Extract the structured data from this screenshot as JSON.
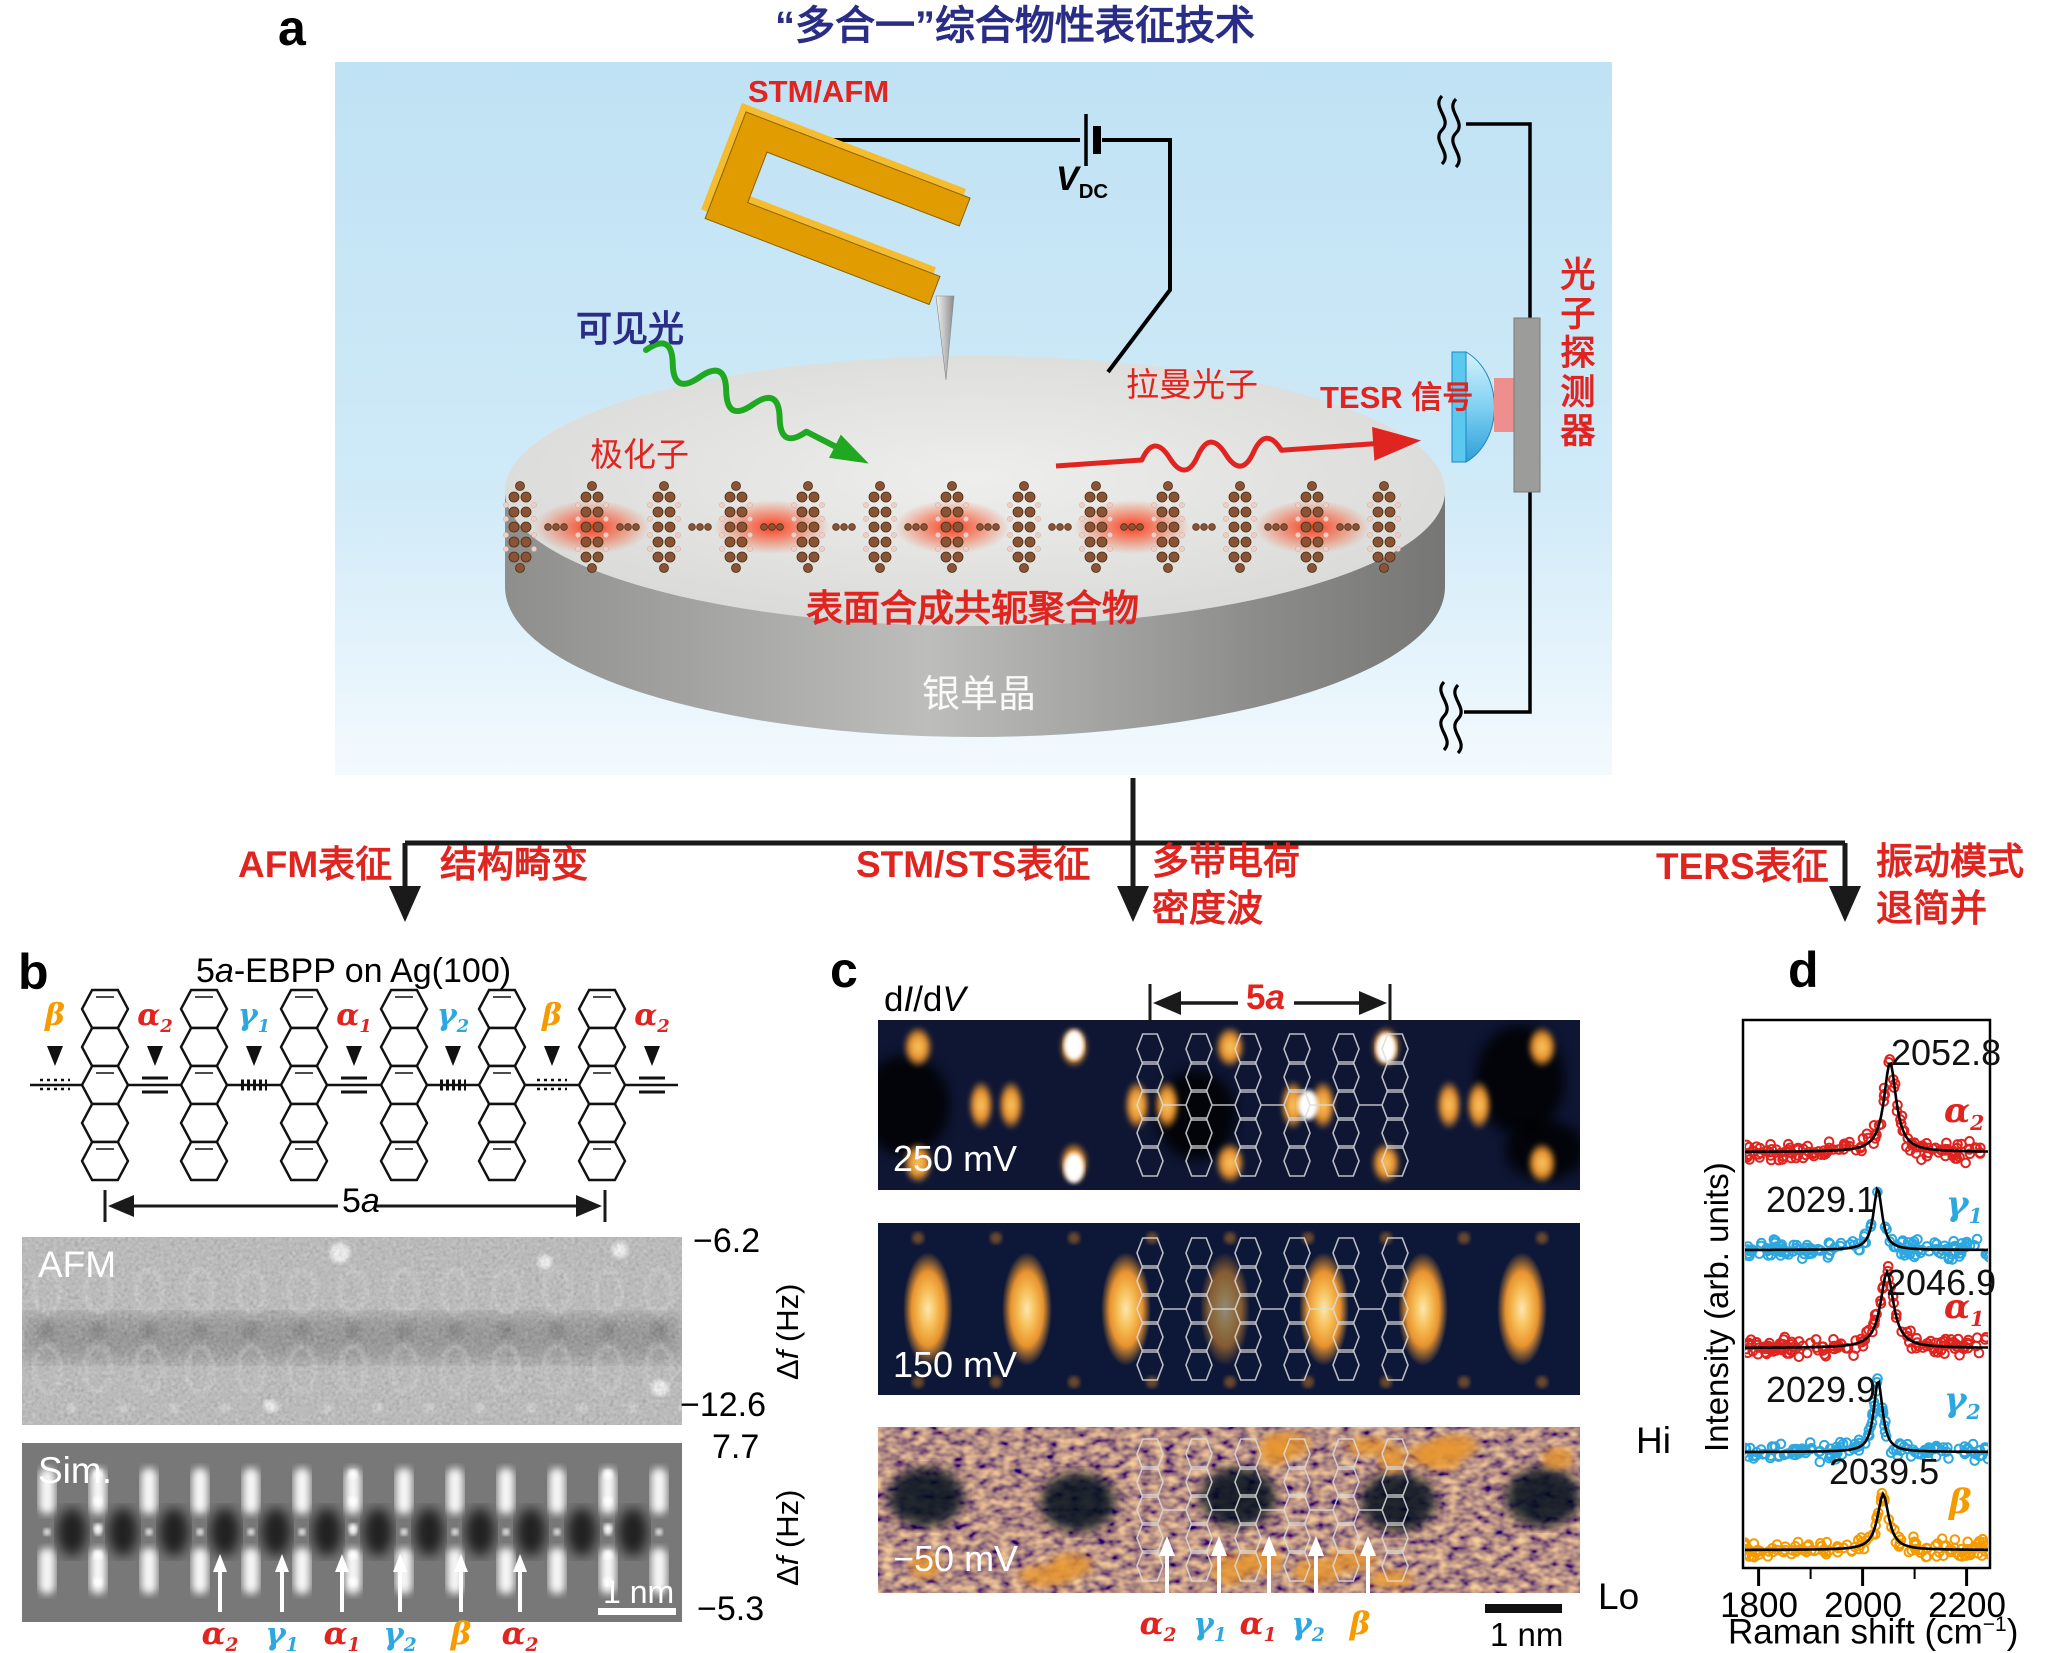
{
  "colors": {
    "accent_red": "#e02420",
    "label_cyan": "#2da7e0",
    "label_orange": "#f59b00",
    "title_navy": "#2a2d85",
    "panel_bg_blue": "#bfe2f4",
    "gold": "#e09c00",
    "green_light": "#21a821",
    "silver_top": "#dcdcda",
    "silver_side": "#9a9a98"
  },
  "panel_a": {
    "label": "a",
    "title": "“多合一”综合物性表征技术",
    "stm_afm": "STM/AFM",
    "vdc_main": "V",
    "vdc_sub": "DC",
    "visible_light": "可见光",
    "polaron": "极化子",
    "raman_photon": "拉曼光子",
    "tesr_signal": "TESR 信号",
    "photon_detector": "光子探测器",
    "polymer": "表面合成共轭聚合物",
    "silver_crystal": "银单晶"
  },
  "branches": {
    "afm_method": "AFM表征",
    "afm_result": "结构畸变",
    "stm_method": "STM/STS表征",
    "stm_result_1": "多带电荷",
    "stm_result_2": "密度波",
    "ters_method": "TERS表征",
    "ters_result_1": "振动模式",
    "ters_result_2": "退简并"
  },
  "panel_b": {
    "label": "b",
    "title_num": "5",
    "title_italic": "a",
    "title_rest": "-EBPP on Ag(100)",
    "afm_tag": "AFM",
    "sim_tag": "Sim.",
    "span_num": "5",
    "span_italic": "a",
    "afm_scale_top": "−6.2",
    "afm_scale_bottom": "−12.6",
    "sim_scale_top": "7.7",
    "sim_scale_bottom": "−5.3",
    "scale_unit_delta": "Δ",
    "scale_unit_f": "f",
    "scale_unit_rest": " (Hz)",
    "scalebar": "1 nm",
    "bond_sites": [
      {
        "base": "β",
        "sub": "",
        "color": "#f59b00"
      },
      {
        "base": "α",
        "sub": "2",
        "color": "#e02420"
      },
      {
        "base": "γ",
        "sub": "1",
        "color": "#2da7e0"
      },
      {
        "base": "α",
        "sub": "1",
        "color": "#e02420"
      },
      {
        "base": "γ",
        "sub": "2",
        "color": "#2da7e0"
      },
      {
        "base": "β",
        "sub": "",
        "color": "#f59b00"
      },
      {
        "base": "α",
        "sub": "2",
        "color": "#e02420"
      }
    ],
    "sim_sites": [
      {
        "base": "α",
        "sub": "2",
        "color": "#e02420"
      },
      {
        "base": "γ",
        "sub": "1",
        "color": "#2da7e0"
      },
      {
        "base": "α",
        "sub": "1",
        "color": "#e02420"
      },
      {
        "base": "γ",
        "sub": "2",
        "color": "#2da7e0"
      },
      {
        "base": "β",
        "sub": "",
        "color": "#f59b00"
      },
      {
        "base": "α",
        "sub": "2",
        "color": "#e02420"
      }
    ]
  },
  "panel_c": {
    "label": "c",
    "didv_d1": "d",
    "didv_i": "I",
    "didv_d2": "/d",
    "didv_v": "V",
    "span_num": "5",
    "span_italic": "a",
    "maps": [
      {
        "bias": "250 mV"
      },
      {
        "bias": "150 mV"
      },
      {
        "bias": "−50 mV"
      }
    ],
    "cbar_hi": "Hi",
    "cbar_lo": "Lo",
    "scalebar": "1 nm",
    "sites": [
      {
        "base": "α",
        "sub": "2",
        "color": "#e02420"
      },
      {
        "base": "γ",
        "sub": "1",
        "color": "#2da7e0"
      },
      {
        "base": "α",
        "sub": "1",
        "color": "#e02420"
      },
      {
        "base": "γ",
        "sub": "2",
        "color": "#2da7e0"
      },
      {
        "base": "β",
        "sub": "",
        "color": "#f59b00"
      }
    ]
  },
  "panel_d": {
    "label": "d",
    "ylabel": "Intensity (arb. units)",
    "xlabel_pre": "Raman shift (cm",
    "xlabel_sup": "−1",
    "xlabel_post": ")",
    "xticks": [
      "1800",
      "2000",
      "2200"
    ]
  },
  "chart_data": {
    "type": "scatter",
    "title": "",
    "xlabel": "Raman shift (cm⁻¹)",
    "ylabel": "Intensity (arb. units)",
    "xlim": [
      1770,
      2245
    ],
    "xticks": [
      1800,
      2000,
      2200
    ],
    "xticks_minor": [
      1900,
      2100
    ],
    "stacked": true,
    "marker": "open-circle",
    "fit_color": "#000000",
    "series": [
      {
        "name": "α2",
        "label_base": "α",
        "label_sub": "2",
        "color": "#e02420",
        "peak_center": 2052.8,
        "peak_label": "2052.8",
        "fwhm": 28,
        "rel_amplitude": 1.0,
        "fit": "lorentzian"
      },
      {
        "name": "γ1",
        "label_base": "γ",
        "label_sub": "1",
        "color": "#2da7e0",
        "peak_center": 2029.1,
        "peak_label": "2029.1",
        "fwhm": 20,
        "rel_amplitude": 0.69,
        "fit": "lorentzian"
      },
      {
        "name": "α1",
        "label_base": "α",
        "label_sub": "1",
        "color": "#e02420",
        "peak_center": 2046.9,
        "peak_label": "2046.9",
        "fwhm": 30,
        "rel_amplitude": 0.84,
        "fit": "lorentzian"
      },
      {
        "name": "γ2",
        "label_base": "γ",
        "label_sub": "2",
        "color": "#2da7e0",
        "peak_center": 2029.9,
        "peak_label": "2029.9",
        "fwhm": 20,
        "rel_amplitude": 0.8,
        "fit": "lorentzian"
      },
      {
        "name": "β",
        "label_base": "β",
        "label_sub": "",
        "color": "#f59b00",
        "peak_center": 2039.5,
        "peak_label": "2039.5",
        "fwhm": 26,
        "rel_amplitude": 0.62,
        "fit": "lorentzian"
      }
    ]
  }
}
